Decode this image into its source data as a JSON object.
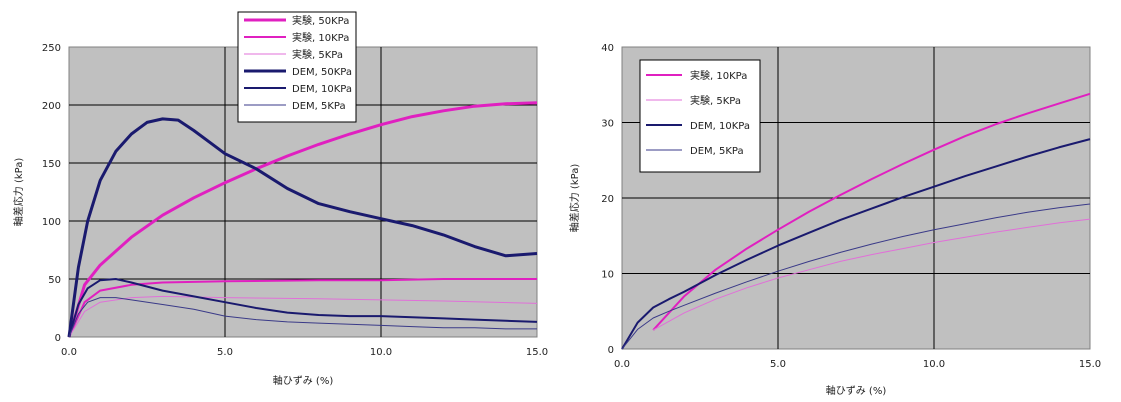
{
  "chart_data": [
    {
      "type": "line",
      "xlabel": "軸ひずみ (%)",
      "ylabel": "軸差応力 (kPa)",
      "xlim": [
        0,
        15
      ],
      "ylim": [
        0,
        250
      ],
      "xticks": [
        "0.0",
        "5.0",
        "10.0",
        "15.0"
      ],
      "yticks": [
        "0",
        "50",
        "100",
        "150",
        "200",
        "250"
      ],
      "grid": true,
      "legend_position": "top-center",
      "background": "#c0c0c0",
      "series": [
        {
          "name": "実験, 50KPa",
          "color": "#e020c0",
          "width": 3,
          "x": [
            0,
            0.5,
            1,
            2,
            3,
            4,
            5,
            6,
            7,
            8,
            9,
            10,
            11,
            12,
            13,
            14,
            15
          ],
          "y": [
            0,
            45,
            62,
            86,
            105,
            120,
            133,
            145,
            156,
            166,
            175,
            183,
            190,
            195,
            199,
            201,
            202
          ]
        },
        {
          "name": "実験, 10KPa",
          "color": "#e020c0",
          "width": 2,
          "x": [
            0,
            0.5,
            1,
            2,
            3,
            5,
            8,
            10,
            12,
            15
          ],
          "y": [
            0,
            30,
            40,
            45,
            47,
            48,
            49,
            49,
            50,
            50
          ]
        },
        {
          "name": "実験, 5KPa",
          "color": "#e070d8",
          "width": 1,
          "x": [
            0,
            0.5,
            1,
            2,
            3,
            5,
            8,
            10,
            12,
            15
          ],
          "y": [
            0,
            22,
            30,
            34,
            35,
            34,
            33,
            32,
            31,
            29
          ]
        },
        {
          "name": "DEM, 50KPa",
          "color": "#1a1a6e",
          "width": 3,
          "x": [
            0,
            0.3,
            0.6,
            1,
            1.5,
            2,
            2.5,
            3,
            3.5,
            4,
            4.5,
            5,
            6,
            7,
            8,
            9,
            10,
            11,
            12,
            13,
            14,
            15
          ],
          "y": [
            0,
            60,
            100,
            135,
            160,
            175,
            185,
            188,
            187,
            178,
            168,
            158,
            145,
            128,
            115,
            108,
            102,
            96,
            88,
            78,
            70,
            72
          ]
        },
        {
          "name": "DEM, 10KPa",
          "color": "#1a1a6e",
          "width": 2,
          "x": [
            0,
            0.3,
            0.6,
            1,
            1.5,
            2,
            3,
            4,
            5,
            6,
            7,
            8,
            9,
            10,
            11,
            12,
            13,
            14,
            15
          ],
          "y": [
            0,
            28,
            42,
            49,
            50,
            47,
            40,
            35,
            30,
            25,
            21,
            19,
            18,
            18,
            17,
            16,
            15,
            14,
            13
          ]
        },
        {
          "name": "DEM, 5KPa",
          "color": "#3a3a88",
          "width": 1,
          "x": [
            0,
            0.3,
            0.6,
            1,
            1.5,
            2,
            3,
            4,
            5,
            6,
            7,
            8,
            9,
            10,
            11,
            12,
            13,
            14,
            15
          ],
          "y": [
            0,
            20,
            30,
            34,
            34,
            32,
            28,
            24,
            18,
            15,
            13,
            12,
            11,
            10,
            9,
            8,
            8,
            7,
            7
          ]
        }
      ]
    },
    {
      "type": "line",
      "xlabel": "軸ひずみ (%)",
      "ylabel": "軸差応力 (kPa)",
      "xlim": [
        0,
        15
      ],
      "ylim": [
        0,
        40
      ],
      "xticks": [
        "0.0",
        "5.0",
        "10.0",
        "15.0"
      ],
      "yticks": [
        "0",
        "10",
        "20",
        "30",
        "40"
      ],
      "grid": true,
      "legend_position": "top-left",
      "background": "#c0c0c0",
      "series": [
        {
          "name": "実験, 10KPa",
          "color": "#e020c0",
          "width": 2,
          "x": [
            1,
            2,
            3,
            4,
            5,
            6,
            7,
            8,
            9,
            10,
            11,
            12,
            13,
            14,
            15
          ],
          "y": [
            2.5,
            7,
            10.5,
            13.3,
            15.8,
            18.2,
            20.4,
            22.5,
            24.5,
            26.4,
            28.2,
            29.8,
            31.2,
            32.5,
            33.8
          ]
        },
        {
          "name": "実験, 5KPa",
          "color": "#e070d8",
          "width": 1,
          "x": [
            1,
            2,
            3,
            4,
            5,
            6,
            7,
            8,
            9,
            10,
            11,
            12,
            13,
            14,
            15
          ],
          "y": [
            2.5,
            4.8,
            6.6,
            8.1,
            9.4,
            10.5,
            11.6,
            12.5,
            13.3,
            14.1,
            14.8,
            15.5,
            16.1,
            16.7,
            17.2
          ]
        },
        {
          "name": "DEM, 10KPa",
          "color": "#1a1a6e",
          "width": 2,
          "x": [
            0,
            0.5,
            1,
            1.5,
            2,
            3,
            4,
            5,
            6,
            7,
            8,
            9,
            10,
            11,
            12,
            13,
            14,
            15
          ],
          "y": [
            0,
            3.5,
            5.5,
            6.6,
            7.6,
            9.8,
            11.8,
            13.7,
            15.4,
            17.1,
            18.6,
            20.1,
            21.5,
            22.9,
            24.2,
            25.5,
            26.7,
            27.8
          ]
        },
        {
          "name": "DEM, 5KPa",
          "color": "#3a3a88",
          "width": 1,
          "x": [
            0,
            0.5,
            1,
            1.5,
            2,
            3,
            4,
            5,
            6,
            7,
            8,
            9,
            10,
            11,
            12,
            13,
            14,
            15
          ],
          "y": [
            0,
            2.6,
            4.1,
            5.0,
            5.8,
            7.4,
            8.9,
            10.3,
            11.6,
            12.8,
            13.9,
            14.9,
            15.8,
            16.6,
            17.4,
            18.1,
            18.7,
            19.2
          ]
        }
      ]
    }
  ]
}
